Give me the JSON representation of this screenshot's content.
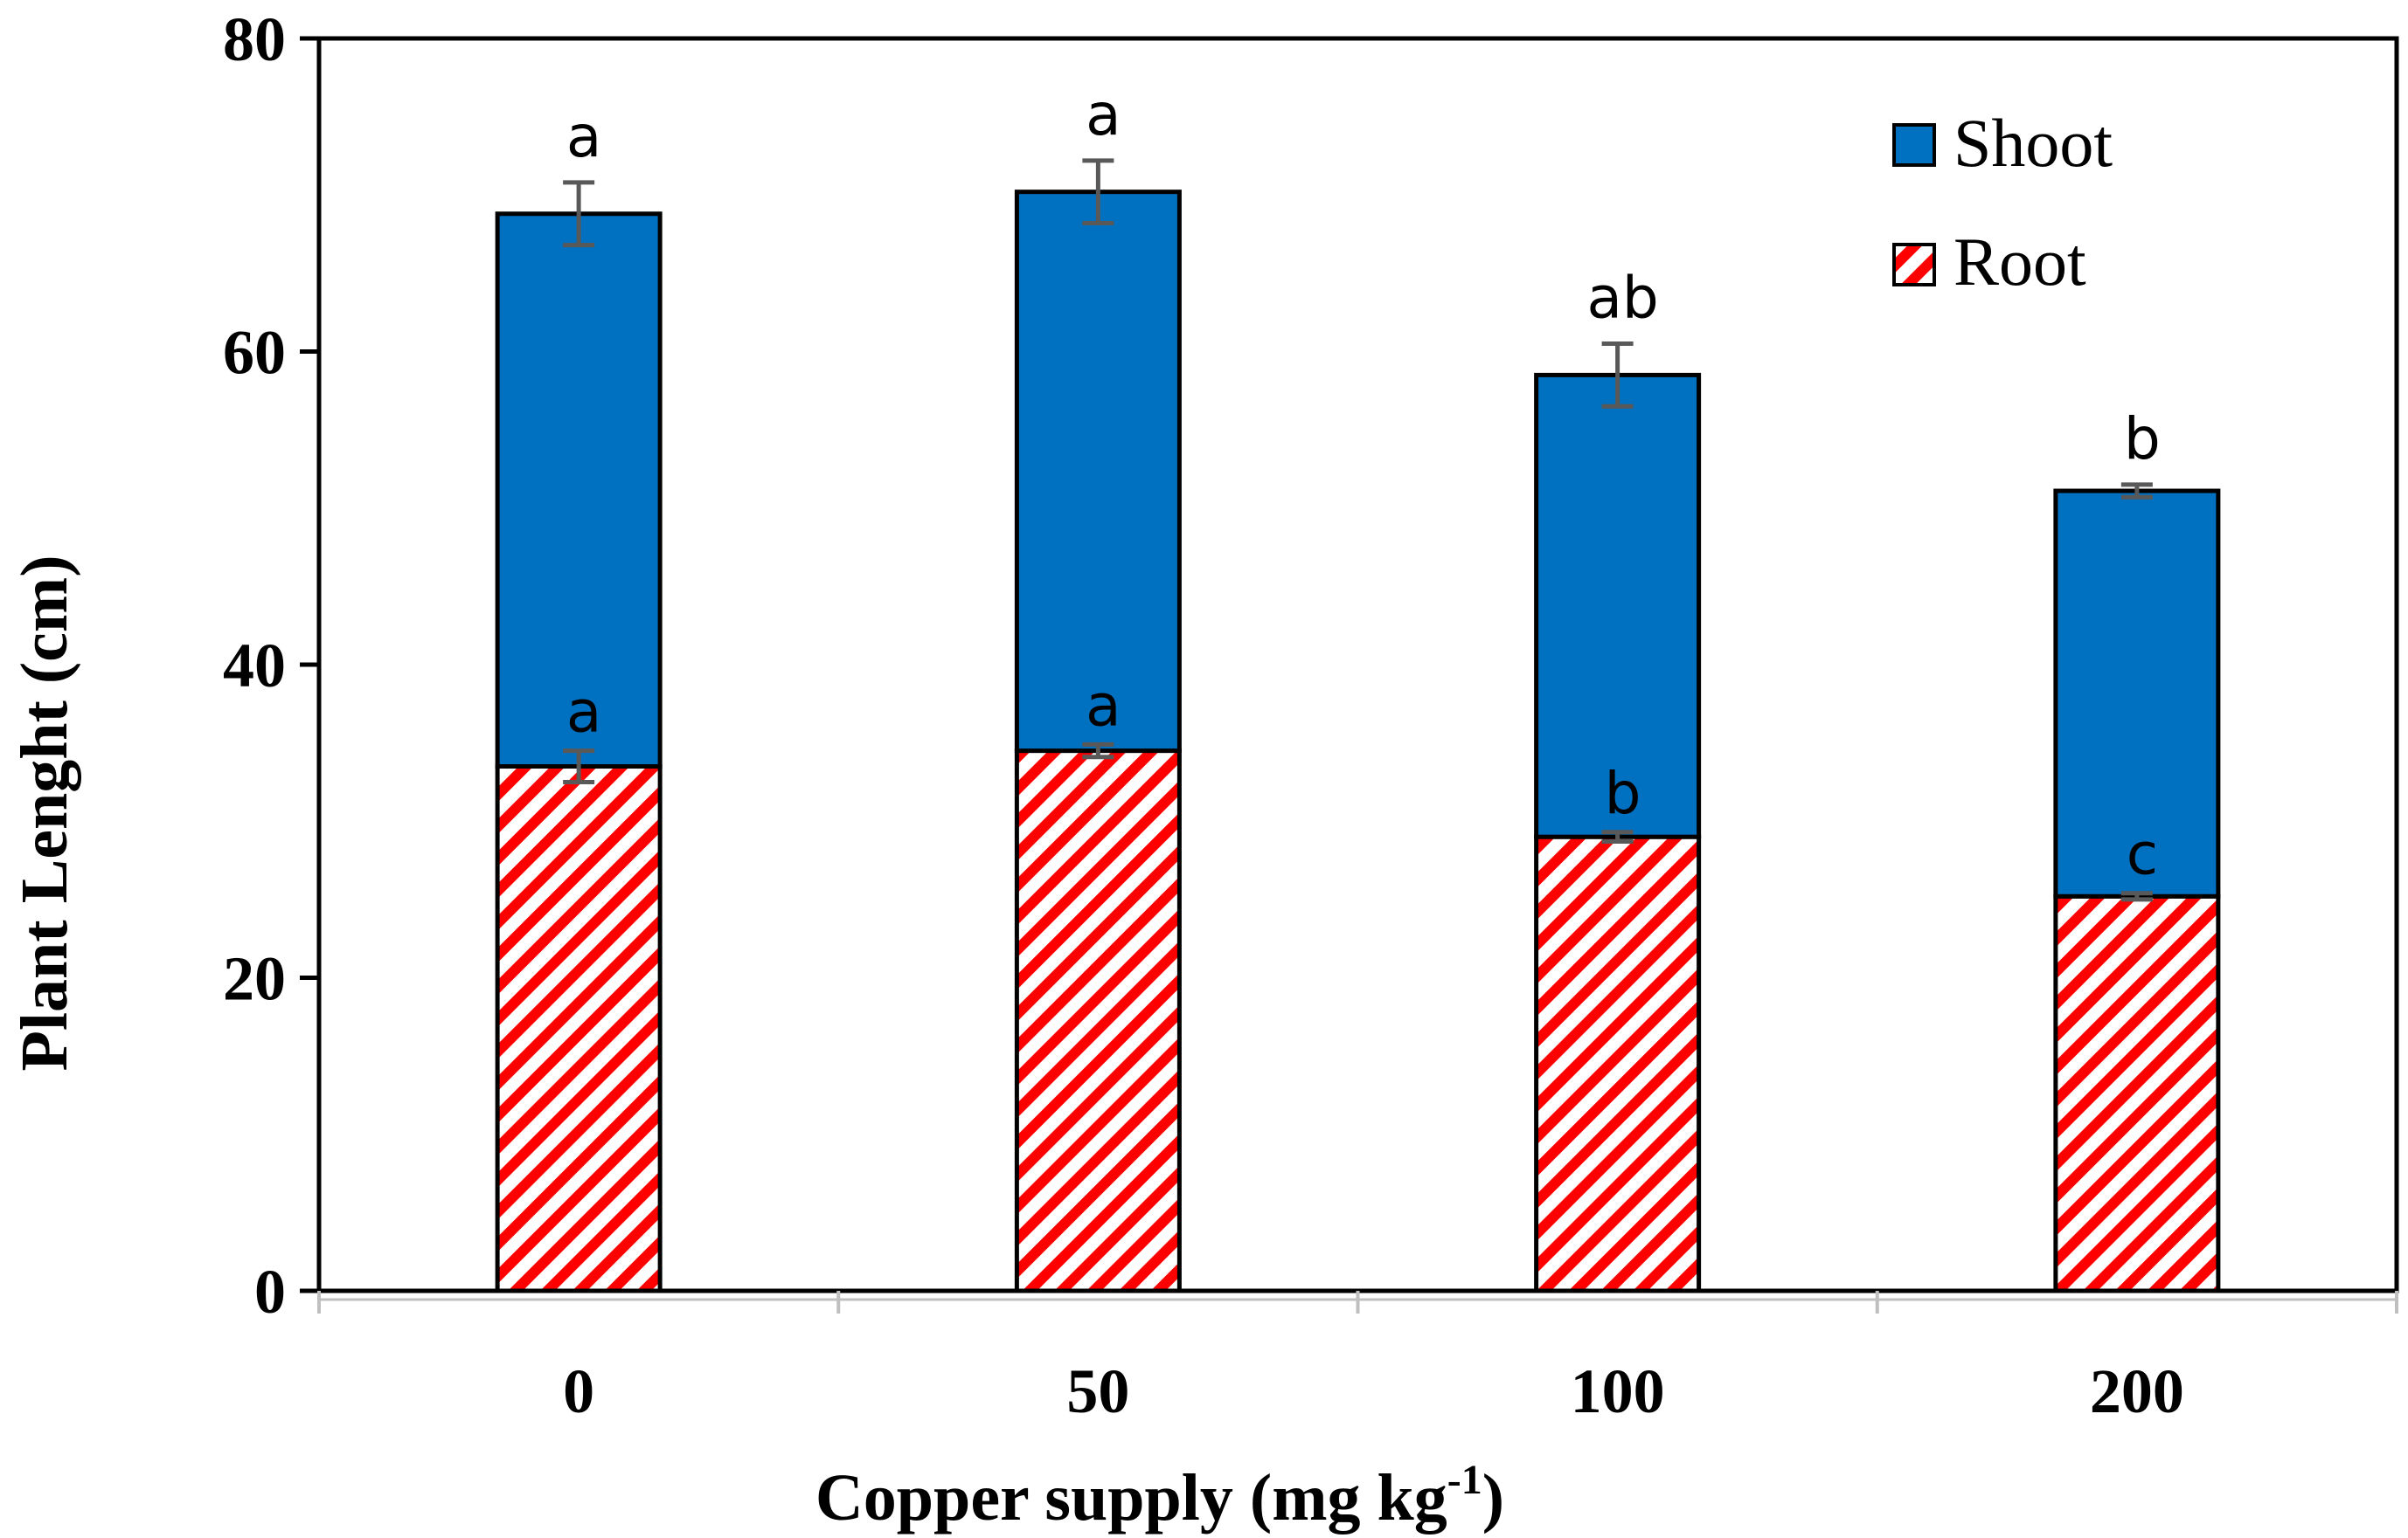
{
  "chart_data": {
    "type": "bar",
    "stacked": true,
    "title": "",
    "xlabel_main": "Copper supply (mg kg",
    "xlabel_sup": "-1",
    "xlabel_end": ")",
    "ylabel": "Plant  Lenght (cm)",
    "ylim": [
      0,
      80
    ],
    "yticks": [
      "0",
      "20",
      "40",
      "60",
      "80"
    ],
    "ytick_values": [
      0,
      20,
      40,
      60,
      80
    ],
    "grid": false,
    "legend_position": "top-right",
    "categories": [
      "0",
      "50",
      "100",
      "200"
    ],
    "series": [
      {
        "name": "Root",
        "pattern": "red diagonal hatch",
        "values": [
          33.5,
          34.5,
          29,
          25.2
        ],
        "errors": [
          1.0,
          0.4,
          0.3,
          0.2
        ],
        "letters": [
          "a",
          "a",
          "b",
          "c"
        ]
      },
      {
        "name": "Shoot",
        "color": "#0070c0",
        "values": [
          35.3,
          35.7,
          29.5,
          25.9
        ],
        "totals": [
          68.8,
          70.2,
          58.5,
          51.1
        ],
        "errors": [
          2.0,
          2.0,
          2.0,
          0.4
        ],
        "letters": [
          "a",
          "a",
          "ab",
          "b"
        ]
      }
    ]
  },
  "colors": {
    "shoot": "#0070c0",
    "root_hatch": "#ff0000",
    "root_bg": "#ffffff",
    "outline": "#000000",
    "error_bar": "#595959"
  }
}
